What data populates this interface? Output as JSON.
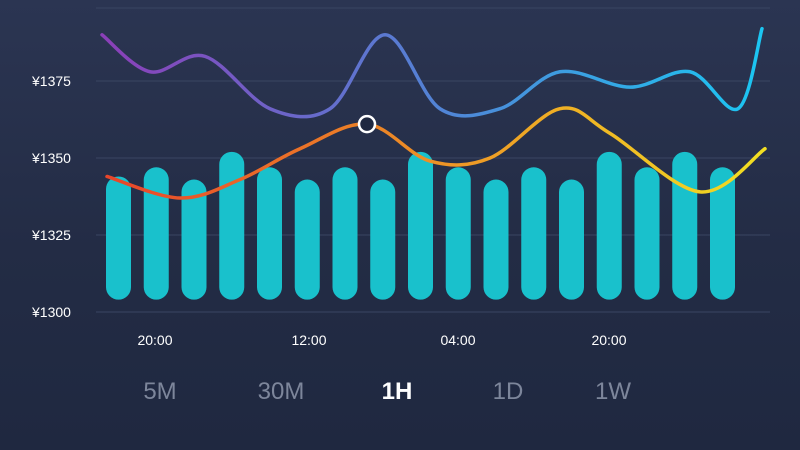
{
  "colors": {
    "bar": "#19c1cc",
    "grid": "#3a4563",
    "line_top_start": "#8b3fb8",
    "line_top_end": "#1bc6f2",
    "line_bottom_start": "#e8452a",
    "line_bottom_end": "#f2df22",
    "marker_fill": "#1f2840",
    "marker_stroke": "#ffffff"
  },
  "chart_data": {
    "type": "bar",
    "y_ticks": [
      "¥1375",
      "¥1350",
      "¥1325",
      "¥1300"
    ],
    "y_tick_values": [
      1375,
      1350,
      1325,
      1300
    ],
    "x_ticks": [
      "20:00",
      "12:00",
      "04:00",
      "20:00"
    ],
    "ylim": [
      1300,
      1400
    ],
    "grid": true,
    "bars": [
      1344,
      1347,
      1343,
      1352,
      1347,
      1343,
      1347,
      1343,
      1352,
      1347,
      1343,
      1347,
      1343,
      1352,
      1347,
      1352,
      1347
    ],
    "bar_base": 1304,
    "series": [
      {
        "values": [
          1390,
          1378,
          1383,
          1366,
          1366,
          1390,
          1366,
          1366,
          1378,
          1373,
          1378,
          1366,
          1392
        ]
      },
      {
        "values": [
          1344,
          1337,
          1343,
          1353,
          1361,
          1349,
          1350,
          1366,
          1358,
          1339,
          1353
        ]
      }
    ],
    "marker": {
      "index": 4,
      "series": 1
    }
  },
  "range_tabs": [
    {
      "label": "5M",
      "active": false
    },
    {
      "label": "30M",
      "active": false
    },
    {
      "label": "1H",
      "active": true
    },
    {
      "label": "1D",
      "active": false
    },
    {
      "label": "1W",
      "active": false
    }
  ]
}
